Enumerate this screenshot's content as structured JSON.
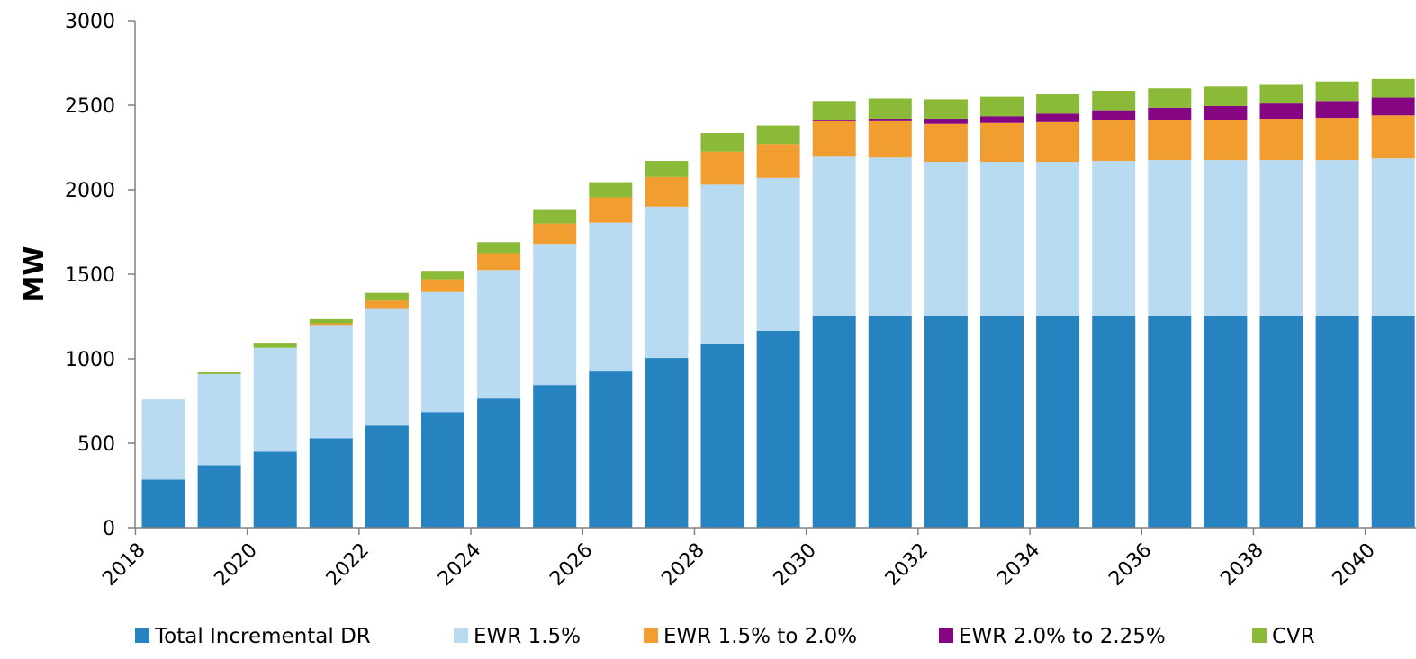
{
  "chart_data": {
    "type": "bar",
    "stacked": true,
    "ylabel": "MW",
    "xlabel": "",
    "ylim": [
      0,
      3000
    ],
    "yticks": [
      0,
      500,
      1000,
      1500,
      2000,
      2500,
      3000
    ],
    "x": [
      2018,
      2019,
      2020,
      2021,
      2022,
      2023,
      2024,
      2025,
      2026,
      2027,
      2028,
      2029,
      2030,
      2031,
      2032,
      2033,
      2034,
      2035,
      2036,
      2037,
      2038,
      2039,
      2040
    ],
    "xtick_labels": [
      "2018",
      "2020",
      "2022",
      "2024",
      "2026",
      "2028",
      "2030",
      "2032",
      "2034",
      "2036",
      "2038",
      "2040"
    ],
    "legend_position": "bottom",
    "series": [
      {
        "name": "Total Incremental DR",
        "color": "#2683C0",
        "values": [
          285,
          370,
          450,
          530,
          605,
          685,
          765,
          845,
          925,
          1005,
          1085,
          1165,
          1250,
          1250,
          1250,
          1250,
          1250,
          1250,
          1250,
          1250,
          1250,
          1250,
          1250
        ]
      },
      {
        "name": "EWR 1.5%",
        "color": "#B9DBF1",
        "values": [
          475,
          540,
          615,
          665,
          690,
          710,
          760,
          835,
          880,
          895,
          945,
          905,
          945,
          940,
          915,
          915,
          915,
          920,
          925,
          925,
          925,
          925,
          935
        ]
      },
      {
        "name": "EWR 1.5% to 2.0%",
        "color": "#F19D2F",
        "values": [
          0,
          0,
          0,
          15,
          50,
          75,
          100,
          120,
          150,
          175,
          195,
          200,
          210,
          215,
          225,
          230,
          235,
          240,
          240,
          240,
          245,
          250,
          255
        ]
      },
      {
        "name": "EWR 2.0% to 2.25%",
        "color": "#860582",
        "values": [
          0,
          0,
          0,
          0,
          0,
          0,
          0,
          0,
          0,
          0,
          0,
          0,
          5,
          15,
          30,
          40,
          50,
          60,
          70,
          80,
          90,
          100,
          105
        ]
      },
      {
        "name": "CVR",
        "color": "#8BBA38",
        "values": [
          0,
          10,
          25,
          25,
          45,
          50,
          65,
          80,
          90,
          95,
          110,
          110,
          115,
          120,
          115,
          115,
          115,
          115,
          115,
          115,
          115,
          115,
          110
        ]
      }
    ]
  }
}
